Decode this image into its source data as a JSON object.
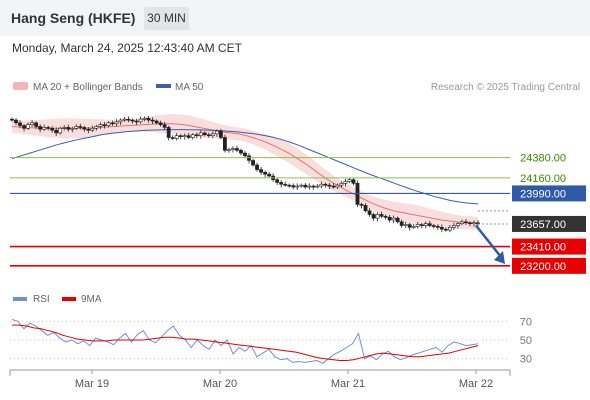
{
  "header": {
    "instrument": "Hang Seng (HKFE)",
    "timeframe": "30 MIN"
  },
  "datetime": "Monday, March 24, 2025 12:43:40 AM CET",
  "legend": {
    "ma20_bb": "MA 20 + Bollinger Bands",
    "ma50": "MA 50",
    "rsi": "RSI",
    "ma9": "9MA"
  },
  "credit": "Research © 2025 Trading Central",
  "colors": {
    "bollinger": "#f5b5b5",
    "ma20": "#e57373",
    "ma50": "#3d5fa8",
    "candle": "#222222",
    "resistance": "#8cc04a",
    "pivot": "#2f5aa8",
    "support": "#e60000",
    "last": "#333333",
    "rsi": "#6f8fd8",
    "rsi_ma": "#e60000",
    "arrow": "#2f5aa8"
  },
  "chart_data": [
    {
      "type": "candlestick",
      "x_labels": [
        "Mar 19",
        "Mar 20",
        "Mar 21",
        "Mar 22"
      ],
      "y_range": [
        23100,
        24900
      ],
      "close": [
        24790,
        24760,
        24730,
        24700,
        24740,
        24760,
        24720,
        24690,
        24710,
        24700,
        24680,
        24650,
        24700,
        24710,
        24690,
        24700,
        24720,
        24710,
        24690,
        24680,
        24700,
        24720,
        24740,
        24730,
        24760,
        24750,
        24770,
        24790,
        24800,
        24790,
        24780,
        24770,
        24800,
        24810,
        24790,
        24780,
        24760,
        24740,
        24710,
        24600,
        24590,
        24620,
        24610,
        24620,
        24600,
        24630,
        24620,
        24650,
        24630,
        24620,
        24640,
        24670,
        24600,
        24460,
        24470,
        24480,
        24460,
        24430,
        24400,
        24350,
        24300,
        24250,
        24220,
        24200,
        24180,
        24140,
        24110,
        24090,
        24080,
        24075,
        24060,
        24070,
        24080,
        24060,
        24070,
        24065,
        24070,
        24090,
        24080,
        24070,
        24060,
        24080,
        24100,
        24120,
        24140,
        24100,
        23870,
        23860,
        23800,
        23760,
        23720,
        23760,
        23740,
        23730,
        23700,
        23720,
        23680,
        23640,
        23650,
        23620,
        23630,
        23650,
        23640,
        23660,
        23640,
        23630,
        23620,
        23600,
        23590,
        23620,
        23640,
        23660,
        23680,
        23670,
        23660,
        23670,
        23657
      ],
      "ma20": [
        24720,
        24715,
        24710,
        24705,
        24705,
        24700,
        24700,
        24700,
        24700,
        24700,
        24700,
        24705,
        24710,
        24715,
        24720,
        24725,
        24730,
        24735,
        24740,
        24745,
        24748,
        24750,
        24750,
        24745,
        24735,
        24720,
        24705,
        24690,
        24675,
        24660,
        24650,
        24640,
        24625,
        24600,
        24575,
        24545,
        24510,
        24470,
        24430,
        24380,
        24330,
        24275,
        24215,
        24160,
        24110,
        24065,
        24020,
        23980,
        23940,
        23900,
        23865,
        23835,
        23810,
        23790,
        23775,
        23760,
        23745,
        23730,
        23715,
        23700,
        23690,
        23680,
        23672,
        23668,
        23665
      ],
      "ma50": [
        24370,
        24400,
        24430,
        24460,
        24490,
        24520,
        24545,
        24570,
        24590,
        24610,
        24630,
        24645,
        24655,
        24665,
        24672,
        24678,
        24682,
        24685,
        24686,
        24686,
        24685,
        24683,
        24680,
        24676,
        24670,
        24662,
        24652,
        24640,
        24625,
        24605,
        24580,
        24550,
        24515,
        24475,
        24435,
        24395,
        24355,
        24315,
        24275,
        24235,
        24195,
        24160,
        24125,
        24090,
        24055,
        24020,
        23990,
        23960,
        23935,
        23912,
        23895,
        23883,
        23876
      ],
      "levels": [
        {
          "label": "24380.00",
          "value": 24380,
          "kind": "resistance"
        },
        {
          "label": "24160.00",
          "value": 24160,
          "kind": "resistance"
        },
        {
          "label": "23990.00",
          "value": 23990,
          "kind": "pivot"
        },
        {
          "label": "23657.00",
          "value": 23657,
          "kind": "last"
        },
        {
          "label": "23410.00",
          "value": 23410,
          "kind": "support"
        },
        {
          "label": "23200.00",
          "value": 23200,
          "kind": "support"
        }
      ],
      "forecast_arrow": {
        "from": 23640,
        "to": 23220
      }
    },
    {
      "type": "line",
      "x_labels": [
        "Mar 19",
        "Mar 20",
        "Mar 21",
        "Mar 22"
      ],
      "y_ticks": [
        70,
        50,
        30
      ],
      "y_range": [
        20,
        80
      ],
      "rsi": [
        72,
        70,
        62,
        68,
        65,
        60,
        55,
        58,
        52,
        48,
        50,
        46,
        49,
        44,
        52,
        50,
        48,
        45,
        52,
        57,
        48,
        56,
        60,
        50,
        47,
        53,
        60,
        65,
        55,
        50,
        42,
        50,
        44,
        40,
        50,
        44,
        50,
        35,
        42,
        38,
        44,
        32,
        36,
        40,
        32,
        29,
        30,
        26,
        27,
        26,
        27,
        28,
        25,
        30,
        35,
        38,
        42,
        46,
        57,
        30,
        33,
        29,
        35,
        38,
        32,
        29,
        31,
        34,
        36,
        38,
        40,
        42,
        37,
        44,
        48,
        46,
        44,
        45,
        46
      ],
      "rsi_ma": [
        66,
        66,
        65,
        63,
        62,
        60,
        58,
        55,
        53,
        51,
        50,
        49,
        49,
        49,
        50,
        50,
        50,
        50,
        50,
        51,
        52,
        53,
        53,
        52,
        51,
        51,
        50,
        49,
        48,
        47,
        46,
        45,
        44,
        43,
        42,
        41,
        40,
        39,
        38,
        37,
        35,
        33,
        31,
        30,
        29,
        28,
        28,
        29,
        31,
        33,
        35,
        36,
        35,
        34,
        33,
        32,
        32,
        33,
        34,
        35,
        36,
        38,
        40,
        42,
        44
      ]
    }
  ]
}
